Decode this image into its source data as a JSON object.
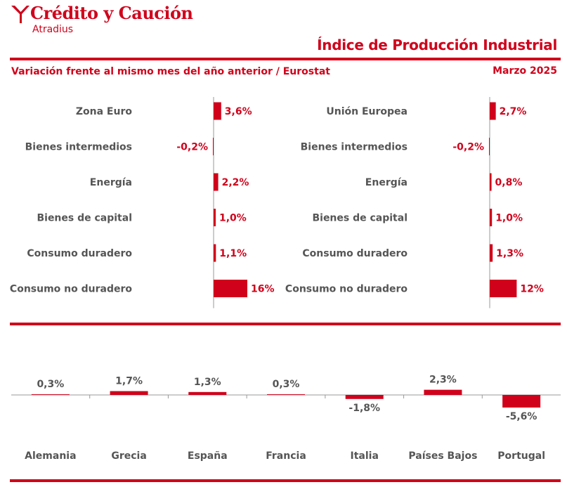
{
  "header": {
    "logo_text": "Crédito y Caución",
    "logo_sub": "Atradius",
    "title": "Índice de Producción Industrial",
    "subtitle": "Variación frente al mismo mes del año anterior / Eurostat",
    "date": "Marzo 2025"
  },
  "colors": {
    "accent": "#d0021b",
    "text": "#555555",
    "axis": "#999999"
  },
  "chart_data": [
    {
      "type": "bar",
      "orientation": "horizontal",
      "title": "Zona Euro",
      "categories": [
        "Zona Euro",
        "Bienes intermedios",
        "Energía",
        "Bienes de capital",
        "Consumo duradero",
        "Consumo no duradero"
      ],
      "values": [
        3.6,
        -0.2,
        2.2,
        1.0,
        1.1,
        16
      ],
      "labels": [
        "3,6%",
        "-0,2%",
        "2,2%",
        "1,0%",
        "1,1%",
        "16%"
      ]
    },
    {
      "type": "bar",
      "orientation": "horizontal",
      "title": "Unión Europea",
      "categories": [
        "Unión Europea",
        "Bienes intermedios",
        "Energía",
        "Bienes de capital",
        "Consumo duradero",
        "Consumo no duradero"
      ],
      "values": [
        2.7,
        -0.2,
        0.8,
        1.0,
        1.3,
        12
      ],
      "labels": [
        "2,7%",
        "-0,2%",
        "0,8%",
        "1,0%",
        "1,3%",
        "12%"
      ]
    },
    {
      "type": "bar",
      "orientation": "vertical",
      "categories": [
        "Alemania",
        "Grecia",
        "España",
        "Francia",
        "Italia",
        "Países Bajos",
        "Portugal"
      ],
      "values": [
        0.3,
        1.7,
        1.3,
        0.3,
        -1.8,
        2.3,
        -5.6
      ],
      "labels": [
        "0,3%",
        "1,7%",
        "1,3%",
        "0,3%",
        "-1,8%",
        "2,3%",
        "-5,6%"
      ]
    }
  ]
}
